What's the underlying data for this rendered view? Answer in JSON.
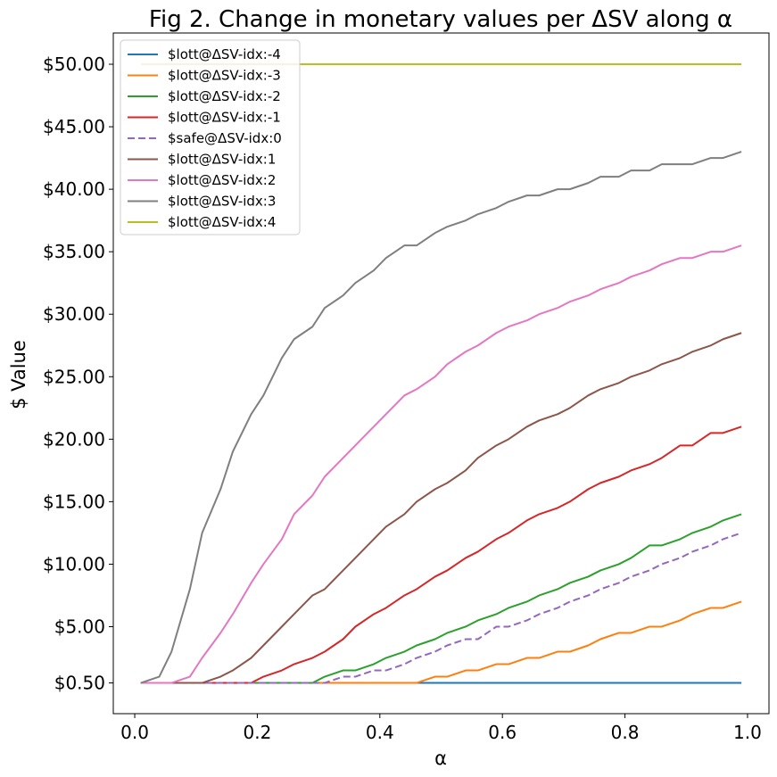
{
  "chart_data": {
    "type": "line",
    "title": "Fig 2. Change in monetary values per ΔSV along α",
    "xlabel": "α",
    "ylabel": "$ Value",
    "xlim": [
      -0.035,
      1.035
    ],
    "ylim": [
      -1.96,
      52.5
    ],
    "x_ticks": [
      0.0,
      0.2,
      0.4,
      0.6,
      0.8,
      1.0
    ],
    "x_tick_labels": [
      "0.0",
      "0.2",
      "0.4",
      "0.6",
      "0.8",
      "1.0"
    ],
    "y_ticks": [
      0.5,
      5,
      10,
      15,
      20,
      25,
      30,
      35,
      40,
      45,
      50
    ],
    "y_tick_labels": [
      "$0.50",
      "$5.00",
      "$10.00",
      "$15.00",
      "$20.00",
      "$25.00",
      "$30.00",
      "$35.00",
      "$40.00",
      "$45.00",
      "$50.00"
    ],
    "grid": false,
    "legend_position": "top-left",
    "x": [
      0.01,
      0.04,
      0.06,
      0.09,
      0.11,
      0.14,
      0.16,
      0.19,
      0.21,
      0.24,
      0.26,
      0.29,
      0.31,
      0.34,
      0.36,
      0.39,
      0.41,
      0.44,
      0.46,
      0.49,
      0.51,
      0.54,
      0.56,
      0.59,
      0.61,
      0.64,
      0.66,
      0.69,
      0.71,
      0.74,
      0.76,
      0.79,
      0.81,
      0.84,
      0.86,
      0.89,
      0.91,
      0.94,
      0.96,
      0.99
    ],
    "series": [
      {
        "name": "$lott@ΔSV-idx:-4",
        "color": "#1f77b4",
        "dashed": false,
        "values": [
          0.5,
          0.5,
          0.5,
          0.5,
          0.5,
          0.5,
          0.5,
          0.5,
          0.5,
          0.5,
          0.5,
          0.5,
          0.5,
          0.5,
          0.5,
          0.5,
          0.5,
          0.5,
          0.5,
          0.5,
          0.5,
          0.5,
          0.5,
          0.5,
          0.5,
          0.5,
          0.5,
          0.5,
          0.5,
          0.5,
          0.5,
          0.5,
          0.5,
          0.5,
          0.5,
          0.5,
          0.5,
          0.5,
          0.5,
          0.5
        ]
      },
      {
        "name": "$lott@ΔSV-idx:-3",
        "color": "#ff7f0e",
        "dashed": false,
        "values": [
          0.5,
          0.5,
          0.5,
          0.5,
          0.5,
          0.5,
          0.5,
          0.5,
          0.5,
          0.5,
          0.5,
          0.5,
          0.5,
          0.5,
          0.5,
          0.5,
          0.5,
          0.5,
          0.5,
          1,
          1,
          1.5,
          1.5,
          2,
          2,
          2.5,
          2.5,
          3,
          3,
          3.5,
          4,
          4.5,
          4.5,
          5,
          5,
          5.5,
          6,
          6.5,
          6.5,
          7
        ]
      },
      {
        "name": "$lott@ΔSV-idx:-2",
        "color": "#2ca02c",
        "dashed": false,
        "values": [
          0.5,
          0.5,
          0.5,
          0.5,
          0.5,
          0.5,
          0.5,
          0.5,
          0.5,
          0.5,
          0.5,
          0.5,
          1,
          1.5,
          1.5,
          2,
          2.5,
          3,
          3.5,
          4,
          4.5,
          5,
          5.5,
          6,
          6.5,
          7,
          7.5,
          8,
          8.5,
          9,
          9.5,
          10,
          10.5,
          11.5,
          11.5,
          12,
          12.5,
          13,
          13.5,
          14
        ]
      },
      {
        "name": "$lott@ΔSV-idx:-1",
        "color": "#d62728",
        "dashed": false,
        "values": [
          0.5,
          0.5,
          0.5,
          0.5,
          0.5,
          0.5,
          0.5,
          0.5,
          1,
          1.5,
          2,
          2.5,
          3,
          4,
          5,
          6,
          6.5,
          7.5,
          8,
          9,
          9.5,
          10.5,
          11,
          12,
          12.5,
          13.5,
          14,
          14.5,
          15,
          16,
          16.5,
          17,
          17.5,
          18,
          18.5,
          19.5,
          19.5,
          20.5,
          20.5,
          21
        ]
      },
      {
        "name": "$safe@ΔSV-idx:0",
        "color": "#9467bd",
        "dashed": true,
        "values": [
          0.5,
          0.5,
          0.5,
          0.5,
          0.5,
          0.5,
          0.5,
          0.5,
          0.5,
          0.5,
          0.5,
          0.5,
          0.5,
          1,
          1,
          1.5,
          1.5,
          2,
          2.5,
          3,
          3.5,
          4,
          4,
          5,
          5,
          5.5,
          6,
          6.5,
          7,
          7.5,
          8,
          8.5,
          9,
          9.5,
          10,
          10.5,
          11,
          11.5,
          12,
          12.5
        ]
      },
      {
        "name": "$lott@ΔSV-idx:1",
        "color": "#8c564b",
        "dashed": false,
        "values": [
          0.5,
          0.5,
          0.5,
          0.5,
          0.5,
          1,
          1.5,
          2.5,
          3.5,
          5,
          6,
          7.5,
          8,
          9.5,
          10.5,
          12,
          13,
          14,
          15,
          16,
          16.5,
          17.5,
          18.5,
          19.5,
          20,
          21,
          21.5,
          22,
          22.5,
          23.5,
          24,
          24.5,
          25,
          25.5,
          26,
          26.5,
          27,
          27.5,
          28,
          28.5
        ]
      },
      {
        "name": "$lott@ΔSV-idx:2",
        "color": "#e377c2",
        "dashed": false,
        "values": [
          0.5,
          0.5,
          0.5,
          1,
          2.5,
          4.5,
          6,
          8.5,
          10,
          12,
          14,
          15.5,
          17,
          18.5,
          19.5,
          21,
          22,
          23.5,
          24,
          25,
          26,
          27,
          27.5,
          28.5,
          29,
          29.5,
          30,
          30.5,
          31,
          31.5,
          32,
          32.5,
          33,
          33.5,
          34,
          34.5,
          34.5,
          35,
          35,
          35.5
        ]
      },
      {
        "name": "$lott@ΔSV-idx:3",
        "color": "#7f7f7f",
        "dashed": false,
        "values": [
          0.5,
          1,
          3,
          8,
          12.5,
          16,
          19,
          22,
          23.5,
          26.5,
          28,
          29,
          30.5,
          31.5,
          32.5,
          33.5,
          34.5,
          35.5,
          35.5,
          36.5,
          37,
          37.5,
          38,
          38.5,
          39,
          39.5,
          39.5,
          40,
          40,
          40.5,
          41,
          41,
          41.5,
          41.5,
          42,
          42,
          42,
          42.5,
          42.5,
          43
        ]
      },
      {
        "name": "$lott@ΔSV-idx:4",
        "color": "#bcbd22",
        "dashed": false,
        "values": [
          50,
          50,
          50,
          50,
          50,
          50,
          50,
          50,
          50,
          50,
          50,
          50,
          50,
          50,
          50,
          50,
          50,
          50,
          50,
          50,
          50,
          50,
          50,
          50,
          50,
          50,
          50,
          50,
          50,
          50,
          50,
          50,
          50,
          50,
          50,
          50,
          50,
          50,
          50,
          50
        ]
      }
    ]
  }
}
